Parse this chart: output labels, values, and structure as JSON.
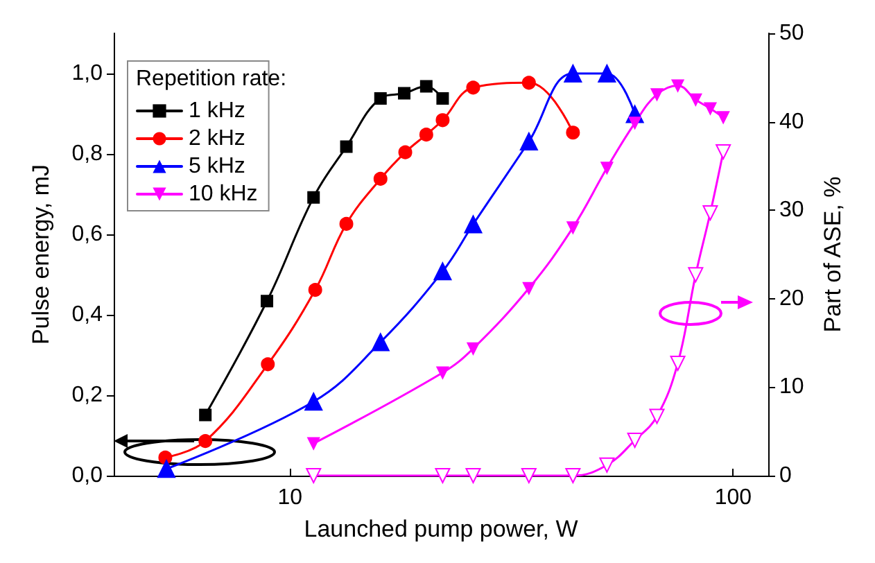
{
  "chart_data": {
    "type": "line",
    "xlabel": "Launched pump power, W",
    "ylabel": "Pulse energy, mJ",
    "y2label": "Part of ASE, %",
    "legend_title": "Repetition rate:",
    "legend": "top left",
    "log": "x",
    "grid": false,
    "line_style": "solid",
    "xlim": [
      4,
      120
    ],
    "xticks": [
      10,
      100
    ],
    "ylim": [
      0,
      1.1
    ],
    "yticks": [
      {
        "value": 0,
        "label": "0,0"
      },
      {
        "value": 0.2,
        "label": "0,2"
      },
      {
        "value": 0.4,
        "label": "0,4"
      },
      {
        "value": 0.6,
        "label": "0,6"
      },
      {
        "value": 0.8,
        "label": "0,8"
      },
      {
        "value": 1.0,
        "label": "1,0"
      }
    ],
    "y2lim": [
      0,
      50
    ],
    "y2ticks": [
      0,
      10,
      20,
      30,
      40,
      50
    ],
    "series": [
      {
        "name": "1 kHz",
        "color": "#000000",
        "marker": "square",
        "x": [
          6.44,
          8.87,
          11.3,
          13.4,
          16.0,
          18.1,
          20.3,
          22.1
        ],
        "values": [
          0.151,
          0.434,
          0.692,
          0.818,
          0.938,
          0.951,
          0.968,
          0.938
        ]
      },
      {
        "name": "2 kHz",
        "color": "#ff0000",
        "marker": "circle",
        "x": [
          5.23,
          6.44,
          8.91,
          11.4,
          13.4,
          16.0,
          18.2,
          20.3,
          22.1,
          25.9,
          34.6,
          43.5
        ],
        "values": [
          0.045,
          0.086,
          0.277,
          0.462,
          0.626,
          0.738,
          0.804,
          0.848,
          0.884,
          0.965,
          0.977,
          0.853
        ]
      },
      {
        "name": "5 kHz",
        "color": "#0000ff",
        "marker": "triangle",
        "x": [
          5.26,
          11.3,
          16.0,
          22.1,
          25.9,
          34.6,
          43.5,
          51.9,
          60.0
        ],
        "values": [
          0.017,
          0.184,
          0.332,
          0.508,
          0.625,
          0.831,
          1.0,
          1.0,
          0.899
        ]
      },
      {
        "name": "10 kHz",
        "color": "#ff00ff",
        "marker": "triangle-down",
        "x": [
          11.3,
          22.1,
          25.9,
          34.6,
          43.5,
          51.9,
          60.0,
          67.3,
          75.0,
          82.3,
          88.8,
          95.0
        ],
        "values": [
          0.08,
          0.256,
          0.316,
          0.466,
          0.617,
          0.765,
          0.877,
          0.948,
          0.97,
          0.935,
          0.913,
          0.891
        ]
      },
      {
        "color": "#ff00ff",
        "marker": "triangle-down-open",
        "axis": "y2",
        "x": [
          11.3,
          22.1,
          25.9,
          34.6,
          43.5,
          51.9,
          60.0,
          67.3,
          75.0,
          82.3,
          88.8,
          95.0
        ],
        "values": [
          0,
          0,
          0,
          0,
          0,
          1.2,
          4.0,
          6.7,
          12.7,
          22.7,
          29.7,
          36.6
        ]
      }
    ]
  }
}
